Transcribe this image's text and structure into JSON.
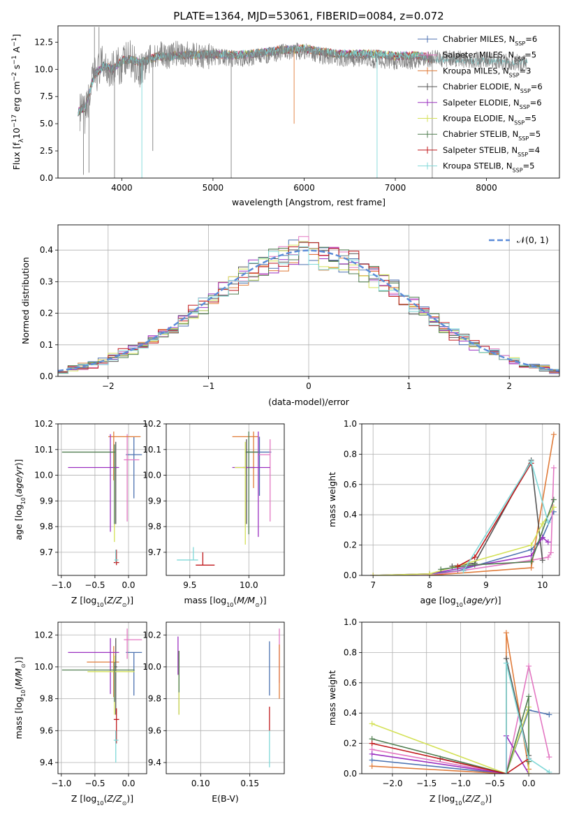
{
  "figure": {
    "title": "PLATE=1364, MJD=53061, FIBERID=0084, z=0.072"
  },
  "models": [
    {
      "name": "Chabrier MILES, N",
      "sub": "SSP",
      "n": "=6",
      "color": "#4c72b0"
    },
    {
      "name": "Salpeter MILES, N",
      "sub": "SSP",
      "n": "=5",
      "color": "#e377c2"
    },
    {
      "name": "Kroupa MILES, N",
      "sub": "SSP",
      "n": "=3",
      "color": "#e07b39"
    },
    {
      "name": "Chabrier ELODIE, N",
      "sub": "SSP",
      "n": "=6",
      "color": "#555555"
    },
    {
      "name": "Salpeter ELODIE, N",
      "sub": "SSP",
      "n": "=6",
      "color": "#9b30c0"
    },
    {
      "name": "Kroupa ELODIE, N",
      "sub": "SSP",
      "n": "=5",
      "color": "#d4e157"
    },
    {
      "name": "Chabrier STELIB, N",
      "sub": "SSP",
      "n": "=5",
      "color": "#4f7d4f"
    },
    {
      "name": "Salpeter STELIB, N",
      "sub": "SSP",
      "n": "=4",
      "color": "#c0181b"
    },
    {
      "name": "Kroupa STELIB, N",
      "sub": "SSP",
      "n": "=5",
      "color": "#7fd8d8"
    }
  ],
  "chart_data": [
    {
      "id": "spectrum",
      "type": "line",
      "xlabel": "wavelength [Angstrom, rest frame]",
      "ylabel": "Flux [f_λ10^−17 erg cm^−2 s^−1 A^−1]",
      "xlim": [
        3300,
        8800
      ],
      "ylim": [
        0,
        14
      ],
      "xticks": [
        4000,
        5000,
        6000,
        7000,
        8000
      ],
      "yticks": [
        0.0,
        2.5,
        5.0,
        7.5,
        10.0,
        12.5
      ],
      "series": [
        {
          "name": "data",
          "color": "#808080",
          "x": [
            3550,
            3600,
            3700,
            3800,
            3900,
            4000,
            4100,
            4200,
            4300,
            4400,
            4500,
            4600,
            4800,
            5000,
            5200,
            5400,
            5600,
            5800,
            6000,
            6200,
            6400,
            6600,
            6800,
            7000,
            7200,
            7400,
            7600,
            7800,
            8000,
            8200,
            8400
          ],
          "y": [
            6.0,
            5.8,
            9.5,
            10.5,
            10.0,
            10.5,
            11.0,
            10.0,
            11.0,
            11.5,
            11.2,
            11.5,
            11.3,
            11.2,
            11.0,
            11.0,
            11.3,
            11.6,
            11.7,
            11.2,
            11.0,
            11.0,
            10.8,
            10.7,
            10.8,
            11.0,
            11.0,
            10.9,
            10.8,
            10.7,
            10.6
          ]
        },
        {
          "name": "model",
          "color": "#7fd8d8",
          "x": [
            3500,
            3600,
            3700,
            3800,
            3900,
            4000,
            4100,
            4200,
            4300,
            4400,
            4500,
            4600,
            4800,
            5000,
            5200,
            5400,
            5600,
            5800,
            6000,
            6200,
            6400,
            6600,
            6800,
            7000,
            7200,
            7300,
            7400
          ],
          "y": [
            6.0,
            6.5,
            9.5,
            10.3,
            10.0,
            10.8,
            10.9,
            10.6,
            10.9,
            11.2,
            11.1,
            11.3,
            11.3,
            11.4,
            11.3,
            11.4,
            11.6,
            11.8,
            11.9,
            11.6,
            11.4,
            11.4,
            11.4,
            11.2,
            11.3,
            11.2,
            10.9
          ]
        }
      ]
    },
    {
      "id": "residuals",
      "type": "line",
      "xlabel": "(data-model)/error",
      "ylabel": "Normed distribution",
      "xlim": [
        -2.5,
        2.5
      ],
      "ylim": [
        0,
        0.48
      ],
      "xticks": [
        -2,
        -1,
        0,
        1,
        2
      ],
      "yticks": [
        0.0,
        0.1,
        0.2,
        0.3,
        0.4
      ],
      "legend": "𝒩(0, 1)",
      "gaussian": {
        "mean": 0,
        "sigma": 1,
        "color": "#5b8bd8"
      }
    },
    {
      "id": "age_vs_Z",
      "type": "scatter",
      "xlabel": "Z [log10(Z/Z⊙)]",
      "ylabel": "age  [log10(age/yr)]",
      "xlim": [
        -1.05,
        0.27
      ],
      "ylim": [
        9.61,
        10.2
      ],
      "xticks": [
        -1.0,
        -0.5,
        0.0
      ],
      "yticks": [
        9.7,
        9.8,
        9.9,
        10.0,
        10.1,
        10.2
      ],
      "points": [
        {
          "m": 0,
          "x": 0.08,
          "y": 10.08,
          "xerr": [
            0.12,
            0.12
          ],
          "yerr": [
            0.17,
            0.07
          ]
        },
        {
          "m": 1,
          "x": -0.02,
          "y": 10.06,
          "xerr": [
            0.05,
            0.18
          ],
          "yerr": [
            0.24,
            0.1
          ]
        },
        {
          "m": 2,
          "x": -0.22,
          "y": 10.15,
          "xerr": [
            0.08,
            0.4
          ],
          "yerr": [
            0.17,
            0.02
          ]
        },
        {
          "m": 3,
          "x": -0.19,
          "y": 10.03,
          "xerr": [
            0.02,
            0.02
          ],
          "yerr": [
            0.22,
            0.1
          ]
        },
        {
          "m": 4,
          "x": -0.27,
          "y": 10.03,
          "xerr": [
            0.63,
            0.13
          ],
          "yerr": [
            0.25,
            0.13
          ]
        },
        {
          "m": 5,
          "x": -0.21,
          "y": 10.09,
          "xerr": [
            0.02,
            0.02
          ],
          "yerr": [
            0.35,
            0.03
          ]
        },
        {
          "m": 6,
          "x": -0.21,
          "y": 10.09,
          "xerr": [
            0.78,
            0.02
          ],
          "yerr": [
            0.28,
            0.03
          ]
        },
        {
          "m": 7,
          "x": -0.18,
          "y": 9.66,
          "xerr": [
            0.04,
            0.04
          ],
          "yerr": [
            0.01,
            0.05
          ]
        },
        {
          "m": 8,
          "x": -0.19,
          "y": 9.67,
          "xerr": [
            0.02,
            0.04
          ],
          "yerr": [
            0.01,
            0.04
          ]
        }
      ]
    },
    {
      "id": "age_vs_mass",
      "type": "scatter",
      "xlabel": "mass [log10(M/M⊙)]",
      "ylabel": "",
      "xlim": [
        9.3,
        10.3
      ],
      "ylim": [
        9.61,
        10.2
      ],
      "xticks": [
        9.5,
        10.0
      ],
      "yticks": [
        9.7,
        9.8,
        9.9,
        10.0,
        10.1,
        10.2
      ],
      "points": [
        {
          "m": 0,
          "x": 10.09,
          "y": 10.09,
          "xerr": [
            0.12,
            0.1
          ],
          "yerr": [
            0.17,
            0.06
          ]
        },
        {
          "m": 1,
          "x": 10.18,
          "y": 10.08,
          "xerr": [
            0.1,
            0.0
          ],
          "yerr": [
            0.26,
            0.06
          ]
        },
        {
          "m": 2,
          "x": 10.04,
          "y": 10.15,
          "xerr": [
            0.18,
            0.04
          ],
          "yerr": [
            0.2,
            0.02
          ]
        },
        {
          "m": 3,
          "x": 9.98,
          "y": 10.03,
          "xerr": [
            0.03,
            0.07
          ],
          "yerr": [
            0.22,
            0.11
          ]
        },
        {
          "m": 4,
          "x": 10.08,
          "y": 10.03,
          "xerr": [
            0.22,
            0.1
          ],
          "yerr": [
            0.27,
            0.14
          ]
        },
        {
          "m": 5,
          "x": 9.97,
          "y": 10.03,
          "xerr": [
            0.09,
            0.0
          ],
          "yerr": [
            0.3,
            0.1
          ]
        },
        {
          "m": 6,
          "x": 10.0,
          "y": 10.09,
          "xerr": [
            0.02,
            0.08
          ],
          "yerr": [
            0.32,
            0.08
          ]
        },
        {
          "m": 7,
          "x": 9.61,
          "y": 9.65,
          "xerr": [
            0.06,
            0.1
          ],
          "yerr": [
            0.0,
            0.05
          ]
        },
        {
          "m": 8,
          "x": 9.53,
          "y": 9.67,
          "xerr": [
            0.14,
            0.04
          ],
          "yerr": [
            0.0,
            0.05
          ]
        }
      ]
    },
    {
      "id": "weight_vs_age",
      "type": "line",
      "xlabel": "age  [log10(age/yr)]",
      "ylabel": "mass weight",
      "xlim": [
        6.8,
        10.3
      ],
      "ylim": [
        0,
        1.0
      ],
      "xticks": [
        7,
        8,
        9,
        10
      ],
      "yticks": [
        0.0,
        0.2,
        0.4,
        0.6,
        0.8,
        1.0
      ],
      "series": [
        {
          "m": 0,
          "x": [
            7.0,
            8.0,
            8.5,
            9.8,
            10.0,
            10.2
          ],
          "y": [
            0.0,
            0.01,
            0.03,
            0.17,
            0.25,
            0.42
          ]
        },
        {
          "m": 1,
          "x": [
            7.0,
            8.0,
            9.8,
            10.1,
            10.15,
            10.2
          ],
          "y": [
            0.0,
            0.0,
            0.1,
            0.12,
            0.15,
            0.71
          ]
        },
        {
          "m": 2,
          "x": [
            8.0,
            9.8,
            10.2
          ],
          "y": [
            0.0,
            0.05,
            0.93
          ]
        },
        {
          "m": 3,
          "x": [
            8.4,
            8.8,
            9.8,
            10.0
          ],
          "y": [
            0.06,
            0.08,
            0.76,
            0.1
          ]
        },
        {
          "m": 4,
          "x": [
            7.0,
            8.0,
            9.8,
            10.0,
            10.1
          ],
          "y": [
            0.0,
            0.01,
            0.13,
            0.25,
            0.22
          ]
        },
        {
          "m": 5,
          "x": [
            7.0,
            8.0,
            9.8,
            10.0,
            10.2
          ],
          "y": [
            0.0,
            0.01,
            0.2,
            0.34,
            0.45
          ]
        },
        {
          "m": 6,
          "x": [
            8.2,
            8.8,
            9.8,
            10.2
          ],
          "y": [
            0.04,
            0.07,
            0.09,
            0.5
          ]
        },
        {
          "m": 7,
          "x": [
            8.5,
            8.8,
            9.8
          ],
          "y": [
            0.06,
            0.12,
            0.74
          ]
        },
        {
          "m": 8,
          "x": [
            8.6,
            9.8,
            10.1
          ],
          "y": [
            0.03,
            0.75,
            0.35
          ]
        }
      ]
    },
    {
      "id": "mass_vs_Z",
      "type": "scatter",
      "xlabel": "Z [log10(Z/Z⊙)]",
      "ylabel": "mass [log10(M/M⊙)]",
      "xlim": [
        -1.05,
        0.27
      ],
      "ylim": [
        9.33,
        10.28
      ],
      "xticks": [
        -1.0,
        -0.5,
        0.0
      ],
      "yticks": [
        9.4,
        9.6,
        9.8,
        10.0,
        10.2
      ],
      "points": [
        {
          "m": 0,
          "x": 0.08,
          "y": 10.09,
          "xerr": [
            0.12,
            0.12
          ],
          "yerr": [
            0.27,
            0.0
          ]
        },
        {
          "m": 1,
          "x": -0.02,
          "y": 10.17,
          "xerr": [
            0.05,
            0.22
          ],
          "yerr": [
            0.12,
            0.07
          ]
        },
        {
          "m": 2,
          "x": -0.22,
          "y": 10.03,
          "xerr": [
            0.4,
            0.08
          ],
          "yerr": [
            0.22,
            0.1
          ]
        },
        {
          "m": 3,
          "x": -0.19,
          "y": 10.0,
          "xerr": [
            0.02,
            0.02
          ],
          "yerr": [
            0.3,
            0.18
          ]
        },
        {
          "m": 4,
          "x": -0.27,
          "y": 10.09,
          "xerr": [
            0.63,
            0.13
          ],
          "yerr": [
            0.26,
            0.09
          ]
        },
        {
          "m": 5,
          "x": -0.21,
          "y": 9.97,
          "xerr": [
            0.4,
            0.3
          ],
          "yerr": [
            0.27,
            0.1
          ]
        },
        {
          "m": 6,
          "x": -0.21,
          "y": 9.98,
          "xerr": [
            0.78,
            0.3
          ],
          "yerr": [
            0.2,
            0.05
          ]
        },
        {
          "m": 7,
          "x": -0.18,
          "y": 9.67,
          "xerr": [
            0.04,
            0.04
          ],
          "yerr": [
            0.15,
            0.07
          ]
        },
        {
          "m": 8,
          "x": -0.19,
          "y": 9.54,
          "xerr": [
            0.03,
            0.04
          ],
          "yerr": [
            0.14,
            0.06
          ]
        }
      ]
    },
    {
      "id": "mass_vs_ebv",
      "type": "scatter",
      "xlabel": "E(B-V)",
      "ylabel": "",
      "xlim": [
        0.065,
        0.185
      ],
      "ylim": [
        9.33,
        10.28
      ],
      "xticks": [
        0.1,
        0.15
      ],
      "yticks": [
        9.4,
        9.6,
        9.8,
        10.0,
        10.2
      ],
      "points": [
        {
          "m": 0,
          "x": 0.17,
          "y": 10.0,
          "xerr": [
            0,
            0
          ],
          "yerr": [
            0.18,
            0.16
          ]
        },
        {
          "m": 1,
          "x": 0.18,
          "y": 10.1,
          "xerr": [
            0,
            0
          ],
          "yerr": [
            0.2,
            0.14
          ]
        },
        {
          "m": 2,
          "x": 0.18,
          "y": 9.97,
          "xerr": [
            0,
            0
          ],
          "yerr": [
            0.17,
            0.17
          ]
        },
        {
          "m": 3,
          "x": 0.078,
          "y": 10.0,
          "xerr": [
            0,
            0
          ],
          "yerr": [
            0.3,
            0.1
          ]
        },
        {
          "m": 4,
          "x": 0.077,
          "y": 10.1,
          "xerr": [
            0,
            0
          ],
          "yerr": [
            0.15,
            0.09
          ]
        },
        {
          "m": 5,
          "x": 0.078,
          "y": 9.9,
          "xerr": [
            0,
            0
          ],
          "yerr": [
            0.2,
            0.2
          ]
        },
        {
          "m": 6,
          "x": 0.078,
          "y": 9.98,
          "xerr": [
            0,
            0
          ],
          "yerr": [
            0.14,
            0.12
          ]
        },
        {
          "m": 7,
          "x": 0.17,
          "y": 9.6,
          "xerr": [
            0,
            0
          ],
          "yerr": [
            0.0,
            0.15
          ]
        },
        {
          "m": 8,
          "x": 0.17,
          "y": 9.45,
          "xerr": [
            0,
            0
          ],
          "yerr": [
            0.08,
            0.15
          ]
        }
      ]
    },
    {
      "id": "weight_vs_Z",
      "type": "line",
      "xlabel": "Z [log10(Z/Z⊙)]",
      "ylabel": "mass weight",
      "xlim": [
        -2.45,
        0.45
      ],
      "ylim": [
        0,
        1.0
      ],
      "xticks": [
        -2.0,
        -1.5,
        -1.0,
        -0.5,
        0.0
      ],
      "yticks": [
        0.0,
        0.2,
        0.4,
        0.6,
        0.8,
        1.0
      ],
      "series": [
        {
          "m": 0,
          "x": [
            -2.3,
            -0.33,
            0.0,
            0.3
          ],
          "y": [
            0.09,
            0.0,
            0.42,
            0.39
          ]
        },
        {
          "m": 1,
          "x": [
            -2.3,
            -0.33,
            0.0,
            0.3
          ],
          "y": [
            0.16,
            0.0,
            0.71,
            0.11
          ]
        },
        {
          "m": 2,
          "x": [
            -2.3,
            -0.33,
            -0.33,
            0.0
          ],
          "y": [
            0.05,
            0.0,
            0.93,
            0.03
          ]
        },
        {
          "m": 3,
          "x": [
            -1.3,
            -0.33,
            -0.33,
            0.0
          ],
          "y": [
            0.1,
            0.0,
            0.76,
            0.12
          ]
        },
        {
          "m": 4,
          "x": [
            -2.3,
            -0.33,
            -0.33,
            0.0
          ],
          "y": [
            0.13,
            0.0,
            0.25,
            0.0
          ]
        },
        {
          "m": 5,
          "x": [
            -2.3,
            -0.33,
            0.0,
            0.0
          ],
          "y": [
            0.33,
            0.0,
            0.44,
            0.0
          ]
        },
        {
          "m": 6,
          "x": [
            -2.3,
            -0.33,
            0.0,
            0.0
          ],
          "y": [
            0.23,
            0.0,
            0.51,
            0.08
          ]
        },
        {
          "m": 7,
          "x": [
            -2.3,
            -0.33,
            0.0
          ],
          "y": [
            0.2,
            0.0,
            0.1
          ]
        },
        {
          "m": 8,
          "x": [
            -0.33,
            -0.33,
            0.0,
            0.3
          ],
          "y": [
            0.0,
            0.73,
            0.1,
            0.01
          ]
        }
      ]
    }
  ]
}
